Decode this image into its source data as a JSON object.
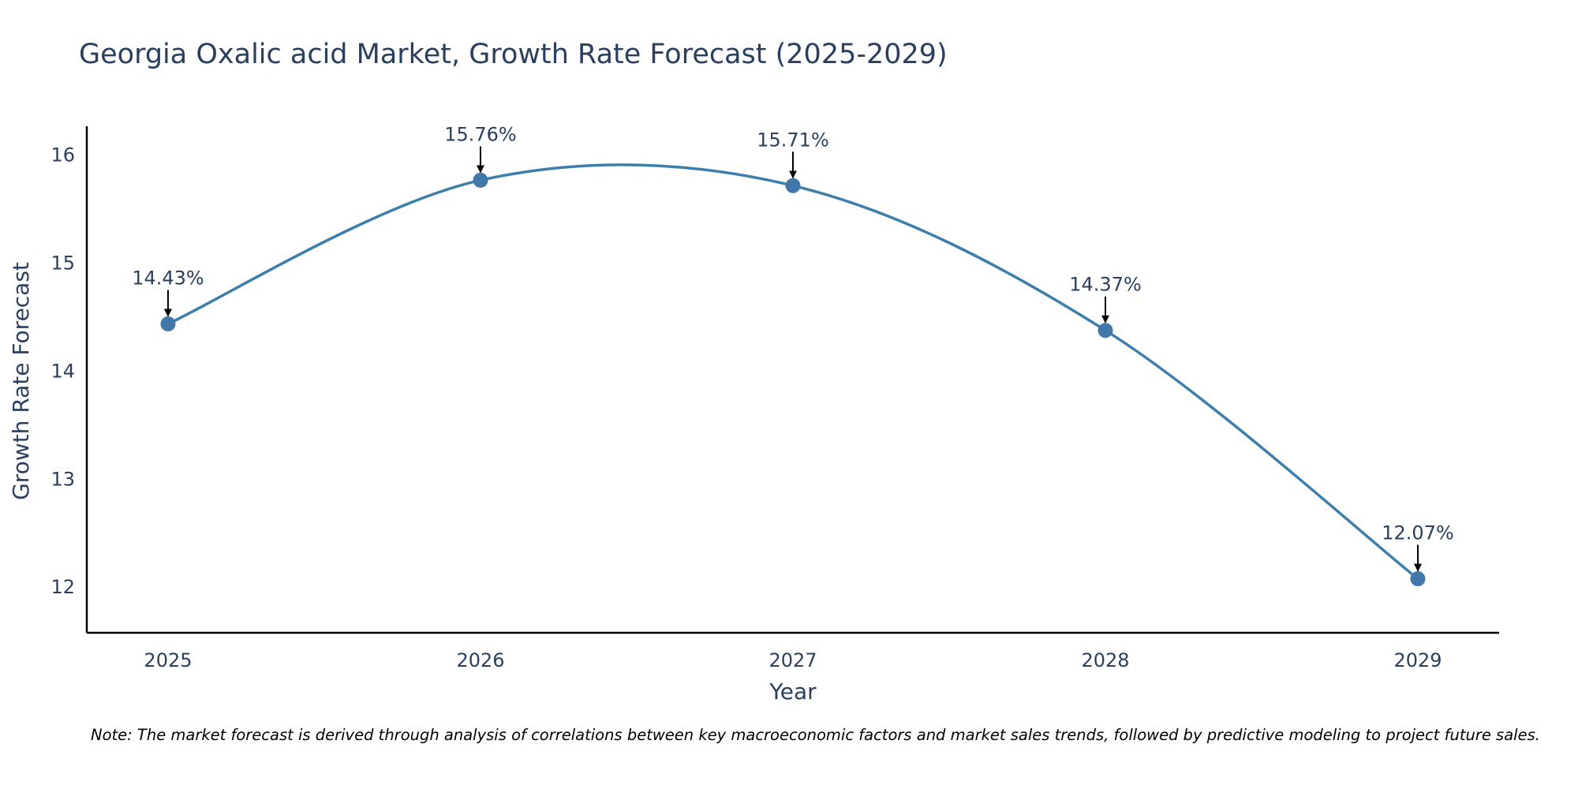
{
  "colors": {
    "line": "#3d7eab",
    "marker": "#4277aa",
    "axis": "#000000",
    "text": "#2a3f5f",
    "arrow": "#000000"
  },
  "chart_data": {
    "type": "line",
    "title": "Georgia Oxalic acid Market, Growth Rate Forecast (2025-2029)",
    "xlabel": "Year",
    "ylabel": "Growth Rate Forecast",
    "x": [
      2025,
      2026,
      2027,
      2028,
      2029
    ],
    "x_tick_labels": [
      "2025",
      "2026",
      "2027",
      "2028",
      "2029"
    ],
    "y_ticks": [
      12,
      13,
      14,
      15,
      16
    ],
    "y_tick_labels": [
      "12",
      "13",
      "14",
      "15",
      "16"
    ],
    "xlim": [
      2024.74,
      2029.26
    ],
    "ylim": [
      11.57,
      16.26
    ],
    "line_shape": "spline",
    "grid": false,
    "series": [
      {
        "name": "Growth Rate Forecast",
        "values": [
          14.43,
          15.76,
          15.71,
          14.37,
          12.07
        ]
      }
    ],
    "annotations": [
      "14.43%",
      "15.76%",
      "15.71%",
      "14.37%",
      "12.07%"
    ]
  },
  "note": "Note: The market forecast is derived through analysis of correlations between key macroeconomic factors and market sales trends, followed by predictive modeling to project future sales."
}
